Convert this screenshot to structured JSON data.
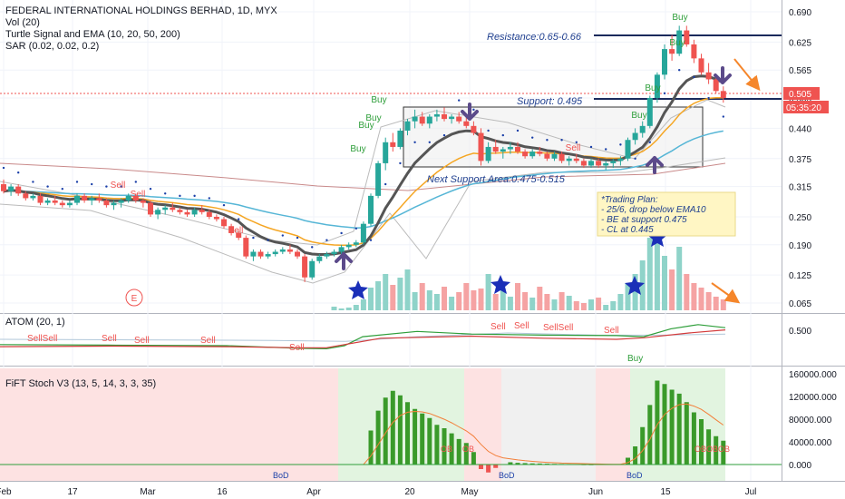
{
  "header": {
    "title": "FEDERAL INTERNATIONAL HOLDINGS BERHAD, 1D, MYX",
    "indicators": [
      "Vol (20)",
      "Turtle Signal and EMA (10, 20, 50, 200)",
      "SAR (0.02, 0.02, 0.2)"
    ]
  },
  "colors": {
    "up": "#26a69a",
    "down": "#ef5350",
    "vol_up": "#8fd3c9",
    "vol_down": "#f5a3a3",
    "ema10": "#555555",
    "ema20": "#f5a623",
    "ema50": "#56b6d6",
    "ema200": "#c98a8a",
    "sar": "#1a3fa8",
    "annotation": "#1f3f8f",
    "arrow": "#5b4a8a",
    "orange_arrow": "#f5862b",
    "stoch_bar": "#3a9a2a",
    "stoch_line": "#f37f3a"
  },
  "price_axis": {
    "ticks": [
      "0.690",
      "0.625",
      "0.565",
      "0.505",
      "0.440",
      "0.375",
      "0.315",
      "0.250",
      "0.190",
      "0.125",
      "0.065"
    ],
    "last_price": "0.505",
    "countdown": "05:35:20"
  },
  "annotations": {
    "resistance": "Resistance:0.65-0.66",
    "support": "Support: 0.495",
    "next_support": "Next Support Area:0.475-0.515",
    "trading_plan": [
      "*Trading Plan:",
      "- 25/6, drop below EMA10",
      "- BE at support 0.475",
      "- CL at 0.445"
    ],
    "earnings_marker": "E"
  },
  "atom_panel": {
    "title": "ATOM (20, 1)",
    "axis_tick": "0.500",
    "signals": [
      "SellSell",
      "Sell",
      "Sell",
      "Sell",
      "Sell",
      "Sell",
      "Sell",
      "SellSell",
      "Sell",
      "Buy"
    ]
  },
  "stoch_panel": {
    "title": "FiFT Stoch V3 (13, 5, 14, 3, 3, 35)",
    "axis_ticks": [
      "160000.000",
      "120000.000",
      "80000.000",
      "40000.000",
      "0.000"
    ],
    "labels": [
      "BoD",
      "OB",
      "OB",
      "BoD",
      "BoD",
      "OBOBOB"
    ]
  },
  "time_axis": {
    "labels": [
      "Feb",
      "17",
      "Mar",
      "16",
      "Apr",
      "20",
      "May",
      "Jun",
      "15",
      "Jul"
    ]
  },
  "chart_data": {
    "type": "candlestick",
    "title": "FEDERAL INTERNATIONAL HOLDINGS BERHAD, 1D, MYX",
    "ylim": [
      0.04,
      0.715
    ],
    "grid": true,
    "candles": [
      [
        0.32,
        0.33,
        0.3,
        0.305
      ],
      [
        0.305,
        0.32,
        0.295,
        0.315
      ],
      [
        0.315,
        0.32,
        0.295,
        0.3
      ],
      [
        0.3,
        0.305,
        0.285,
        0.29
      ],
      [
        0.29,
        0.3,
        0.285,
        0.295
      ],
      [
        0.295,
        0.3,
        0.275,
        0.28
      ],
      [
        0.28,
        0.29,
        0.275,
        0.285
      ],
      [
        0.285,
        0.295,
        0.275,
        0.28
      ],
      [
        0.28,
        0.285,
        0.27,
        0.275
      ],
      [
        0.275,
        0.285,
        0.27,
        0.28
      ],
      [
        0.28,
        0.3,
        0.275,
        0.295
      ],
      [
        0.295,
        0.3,
        0.28,
        0.285
      ],
      [
        0.285,
        0.295,
        0.275,
        0.29
      ],
      [
        0.29,
        0.3,
        0.28,
        0.285
      ],
      [
        0.285,
        0.29,
        0.27,
        0.275
      ],
      [
        0.275,
        0.285,
        0.265,
        0.28
      ],
      [
        0.28,
        0.29,
        0.27,
        0.285
      ],
      [
        0.285,
        0.3,
        0.28,
        0.295
      ],
      [
        0.295,
        0.3,
        0.28,
        0.285
      ],
      [
        0.285,
        0.29,
        0.27,
        0.28
      ],
      [
        0.28,
        0.285,
        0.25,
        0.255
      ],
      [
        0.255,
        0.27,
        0.245,
        0.265
      ],
      [
        0.265,
        0.275,
        0.255,
        0.27
      ],
      [
        0.27,
        0.28,
        0.26,
        0.265
      ],
      [
        0.265,
        0.27,
        0.255,
        0.26
      ],
      [
        0.26,
        0.265,
        0.25,
        0.255
      ],
      [
        0.255,
        0.27,
        0.25,
        0.265
      ],
      [
        0.265,
        0.275,
        0.255,
        0.26
      ],
      [
        0.26,
        0.265,
        0.245,
        0.25
      ],
      [
        0.25,
        0.255,
        0.24,
        0.245
      ],
      [
        0.245,
        0.25,
        0.225,
        0.23
      ],
      [
        0.23,
        0.235,
        0.21,
        0.215
      ],
      [
        0.215,
        0.22,
        0.2,
        0.205
      ],
      [
        0.205,
        0.21,
        0.16,
        0.165
      ],
      [
        0.165,
        0.18,
        0.155,
        0.175
      ],
      [
        0.175,
        0.18,
        0.16,
        0.165
      ],
      [
        0.165,
        0.175,
        0.16,
        0.17
      ],
      [
        0.17,
        0.18,
        0.165,
        0.175
      ],
      [
        0.175,
        0.185,
        0.17,
        0.18
      ],
      [
        0.18,
        0.19,
        0.17,
        0.175
      ],
      [
        0.175,
        0.18,
        0.16,
        0.165
      ],
      [
        0.165,
        0.17,
        0.11,
        0.12
      ],
      [
        0.12,
        0.16,
        0.115,
        0.155
      ],
      [
        0.155,
        0.17,
        0.15,
        0.165
      ],
      [
        0.165,
        0.175,
        0.16,
        0.17
      ],
      [
        0.17,
        0.18,
        0.165,
        0.175
      ],
      [
        0.175,
        0.19,
        0.17,
        0.185
      ],
      [
        0.185,
        0.195,
        0.18,
        0.19
      ],
      [
        0.19,
        0.2,
        0.185,
        0.195
      ],
      [
        0.195,
        0.24,
        0.19,
        0.235
      ],
      [
        0.235,
        0.3,
        0.23,
        0.295
      ],
      [
        0.295,
        0.37,
        0.29,
        0.365
      ],
      [
        0.365,
        0.42,
        0.35,
        0.41
      ],
      [
        0.41,
        0.43,
        0.39,
        0.4
      ],
      [
        0.4,
        0.44,
        0.395,
        0.435
      ],
      [
        0.435,
        0.46,
        0.425,
        0.455
      ],
      [
        0.455,
        0.48,
        0.44,
        0.465
      ],
      [
        0.465,
        0.475,
        0.445,
        0.45
      ],
      [
        0.45,
        0.47,
        0.44,
        0.465
      ],
      [
        0.465,
        0.48,
        0.455,
        0.47
      ],
      [
        0.47,
        0.485,
        0.455,
        0.46
      ],
      [
        0.46,
        0.47,
        0.45,
        0.465
      ],
      [
        0.465,
        0.475,
        0.45,
        0.455
      ],
      [
        0.455,
        0.465,
        0.44,
        0.445
      ],
      [
        0.445,
        0.455,
        0.425,
        0.43
      ],
      [
        0.43,
        0.44,
        0.36,
        0.37
      ],
      [
        0.37,
        0.41,
        0.365,
        0.4
      ],
      [
        0.4,
        0.415,
        0.385,
        0.39
      ],
      [
        0.39,
        0.4,
        0.375,
        0.395
      ],
      [
        0.395,
        0.41,
        0.385,
        0.4
      ],
      [
        0.4,
        0.41,
        0.385,
        0.39
      ],
      [
        0.39,
        0.395,
        0.375,
        0.38
      ],
      [
        0.38,
        0.395,
        0.375,
        0.39
      ],
      [
        0.39,
        0.4,
        0.38,
        0.385
      ],
      [
        0.385,
        0.39,
        0.37,
        0.375
      ],
      [
        0.375,
        0.39,
        0.37,
        0.385
      ],
      [
        0.385,
        0.39,
        0.365,
        0.37
      ],
      [
        0.37,
        0.38,
        0.36,
        0.375
      ],
      [
        0.375,
        0.385,
        0.365,
        0.37
      ],
      [
        0.37,
        0.375,
        0.355,
        0.36
      ],
      [
        0.36,
        0.375,
        0.355,
        0.37
      ],
      [
        0.37,
        0.375,
        0.355,
        0.36
      ],
      [
        0.36,
        0.37,
        0.35,
        0.365
      ],
      [
        0.365,
        0.375,
        0.355,
        0.37
      ],
      [
        0.37,
        0.38,
        0.36,
        0.375
      ],
      [
        0.375,
        0.42,
        0.37,
        0.415
      ],
      [
        0.415,
        0.44,
        0.405,
        0.43
      ],
      [
        0.43,
        0.455,
        0.42,
        0.445
      ],
      [
        0.445,
        0.51,
        0.44,
        0.505
      ],
      [
        0.505,
        0.56,
        0.495,
        0.555
      ],
      [
        0.555,
        0.62,
        0.545,
        0.61
      ],
      [
        0.61,
        0.64,
        0.585,
        0.6
      ],
      [
        0.6,
        0.66,
        0.595,
        0.65
      ],
      [
        0.65,
        0.66,
        0.615,
        0.62
      ],
      [
        0.62,
        0.63,
        0.58,
        0.59
      ],
      [
        0.59,
        0.6,
        0.555,
        0.56
      ],
      [
        0.56,
        0.58,
        0.535,
        0.545
      ],
      [
        0.545,
        0.55,
        0.515,
        0.52
      ],
      [
        0.52,
        0.53,
        0.495,
        0.505
      ]
    ],
    "volume_levels": [
      0,
      0,
      0,
      0,
      0,
      0,
      0,
      0,
      0,
      0,
      0,
      0,
      0,
      0,
      0,
      0,
      0,
      0,
      0,
      0,
      0,
      0,
      0,
      0,
      0,
      0,
      0,
      0,
      0,
      0,
      0,
      0,
      0,
      0,
      0,
      0,
      0,
      0,
      0,
      0,
      0,
      0,
      0,
      0,
      0,
      0.04,
      0.02,
      0.03,
      0.06,
      0.12,
      0.25,
      0.32,
      0.4,
      0.28,
      0.36,
      0.45,
      0.2,
      0.3,
      0.22,
      0.18,
      0.26,
      0.15,
      0.2,
      0.3,
      0.22,
      0.24,
      0.4,
      0.18,
      0.22,
      0.15,
      0.3,
      0.2,
      0.14,
      0.26,
      0.18,
      0.12,
      0.2,
      0.16,
      0.1,
      0.08,
      0.12,
      0.14,
      0.06,
      0.1,
      0.18,
      0.3,
      0.4,
      0.55,
      0.8,
      0.95,
      0.6,
      0.45,
      0.7,
      0.4,
      0.3,
      0.25,
      0.2,
      0.15,
      0.12
    ],
    "stoch_values": [
      0,
      0,
      0,
      0,
      0,
      0,
      0,
      0,
      0,
      0,
      0,
      0,
      0,
      0,
      0,
      0,
      0,
      0,
      0,
      0,
      0,
      0,
      0,
      0,
      0,
      0,
      0,
      0,
      0,
      0,
      0,
      0,
      0,
      0,
      0,
      0,
      0,
      0,
      0,
      0,
      0,
      0,
      0,
      0,
      0,
      0,
      0,
      0,
      0,
      0,
      60000,
      95000,
      118000,
      130000,
      122000,
      110000,
      98000,
      90000,
      82000,
      70000,
      64000,
      55000,
      45000,
      38000,
      22000,
      -8000,
      -14000,
      -6000,
      0,
      4000,
      3000,
      2500,
      2000,
      1800,
      1500,
      1200,
      1000,
      900,
      800,
      600,
      500,
      0,
      0,
      0,
      0,
      12000,
      32000,
      66000,
      105000,
      148000,
      142000,
      132000,
      125000,
      110000,
      92000,
      80000,
      62000,
      50000,
      42000
    ]
  }
}
